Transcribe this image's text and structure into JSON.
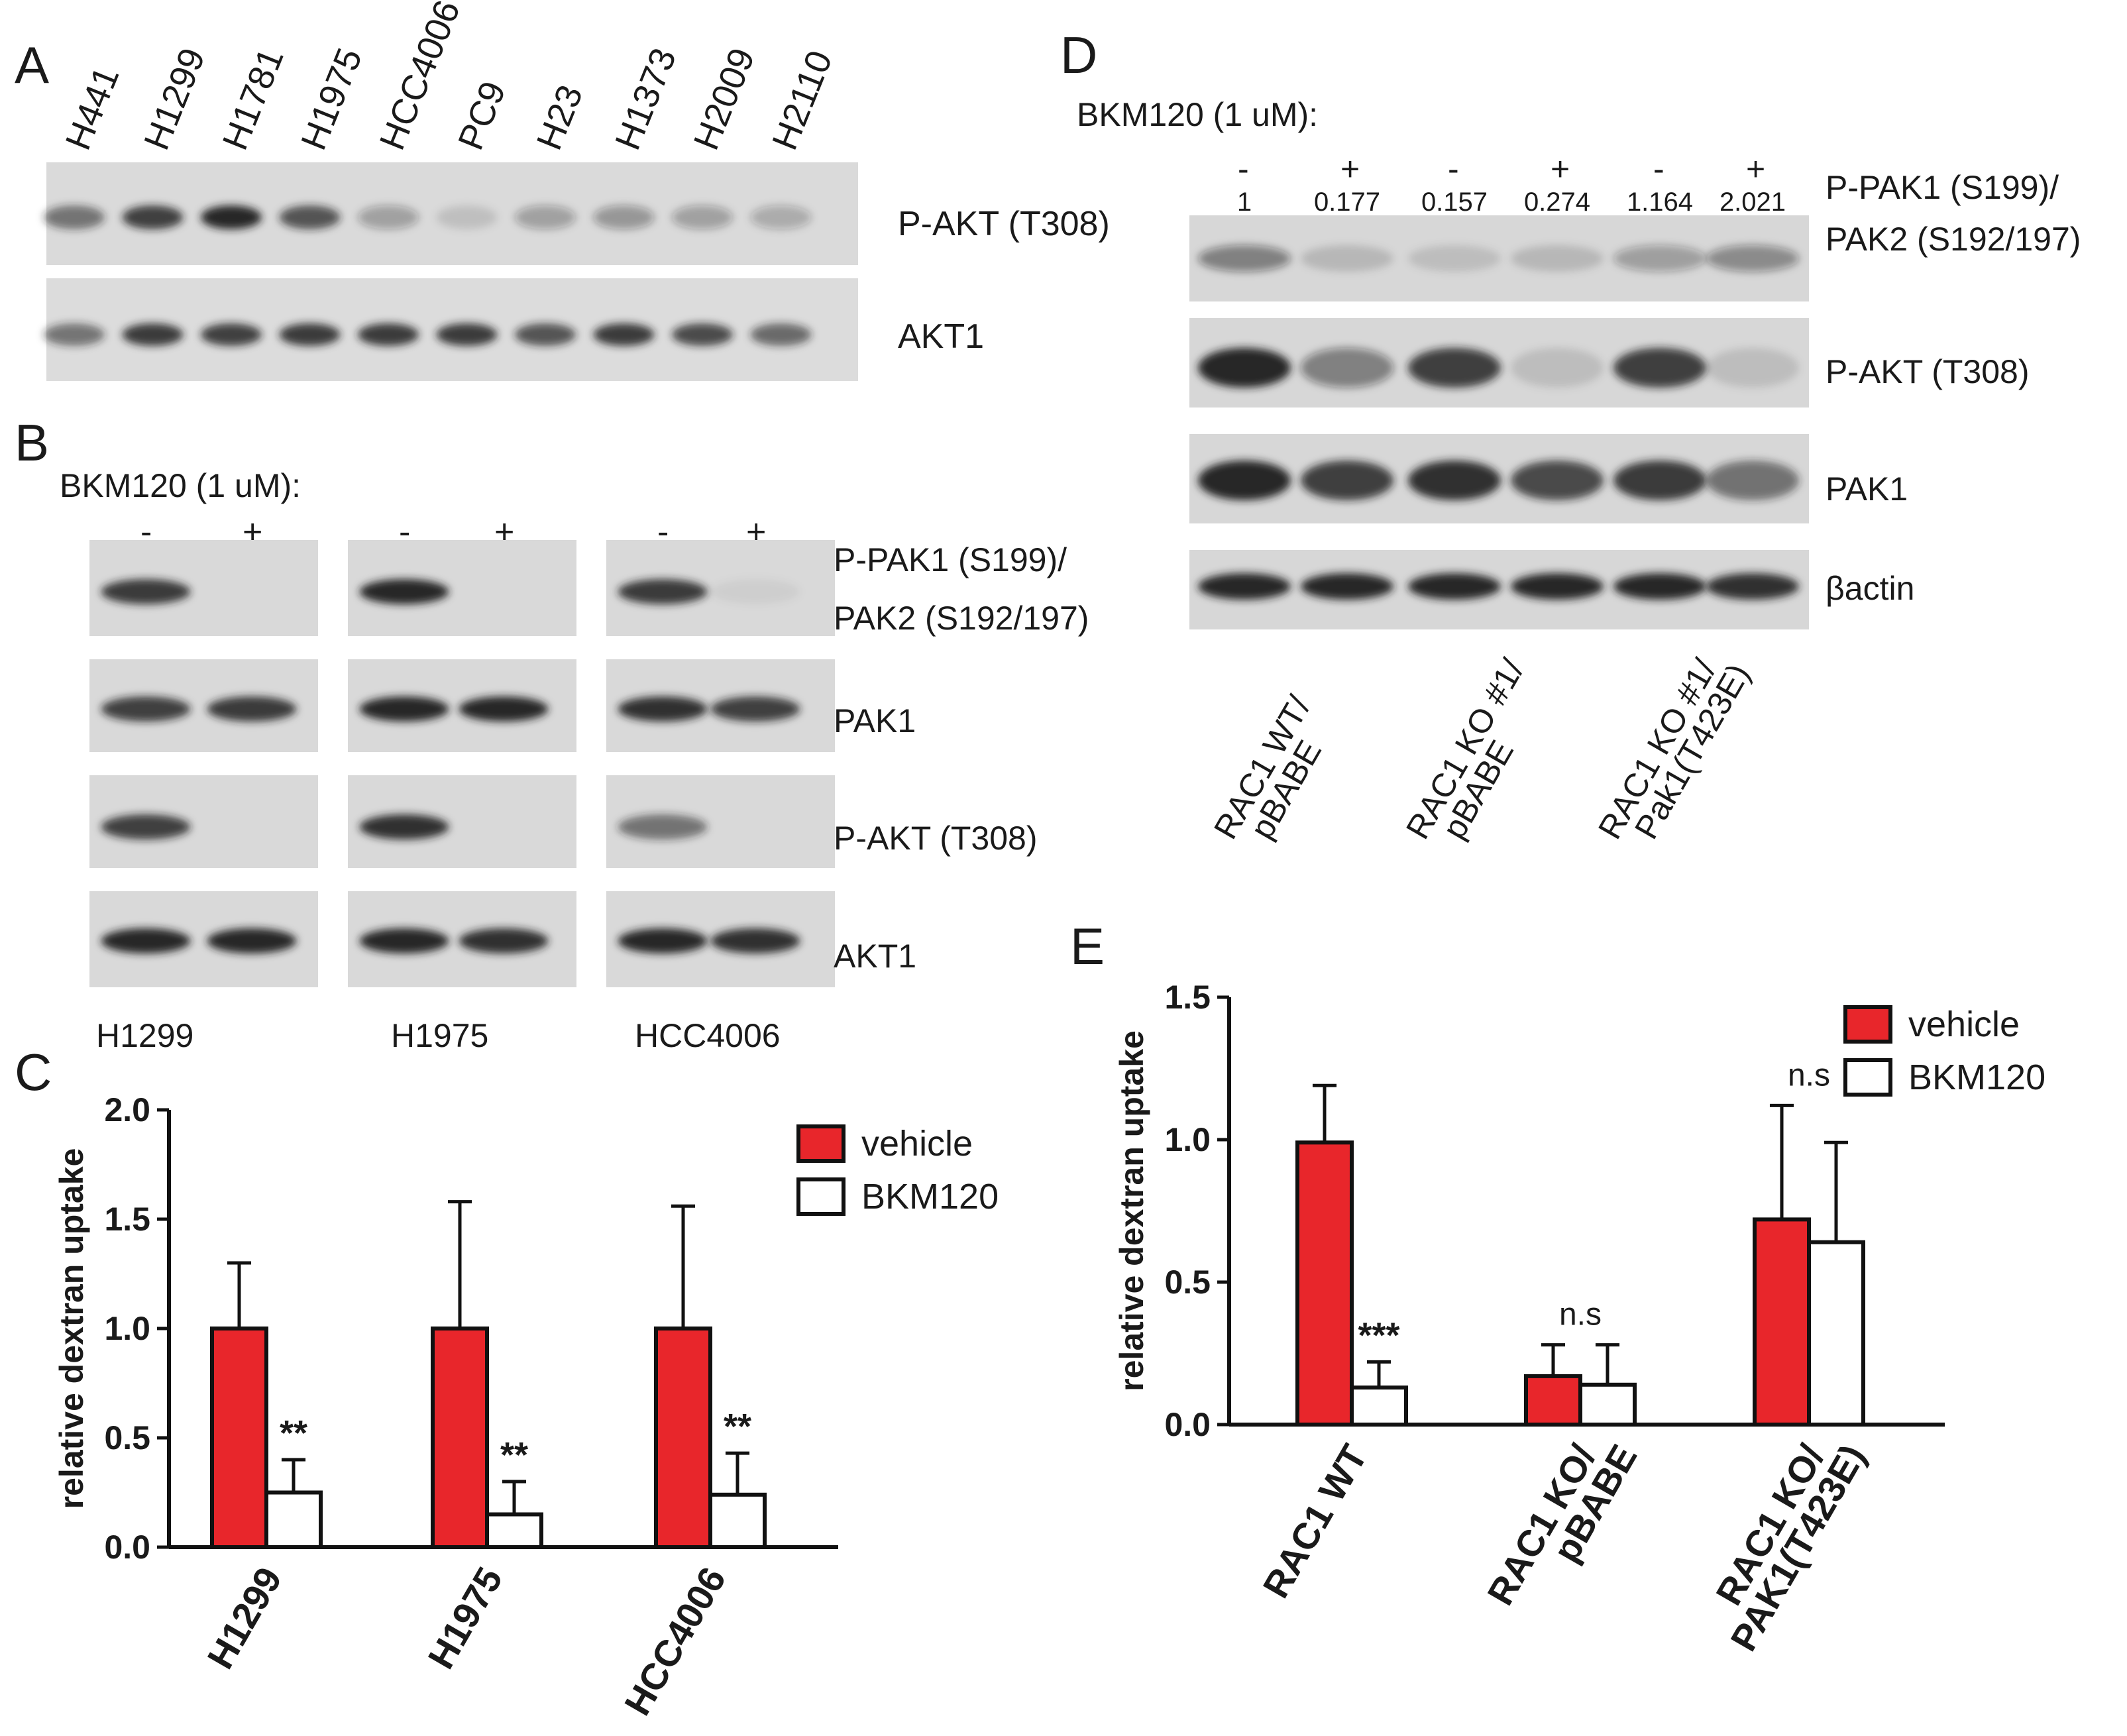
{
  "colors": {
    "red_line": "#e8262b",
    "blue_line": "#2c3a9e",
    "vehicle": "#e8262b",
    "bkm120": "#ffffff",
    "blot_bg": "#d9d9d9",
    "band": "#1c1c1c"
  },
  "panel_a": {
    "letter": "A",
    "lanes": [
      {
        "name": "H441",
        "group": "red",
        "pakt": 0.55,
        "akt1": 0.55
      },
      {
        "name": "H1299",
        "group": "red",
        "pakt": 0.8,
        "akt1": 0.85
      },
      {
        "name": "H1781",
        "group": "red",
        "pakt": 0.95,
        "akt1": 0.8
      },
      {
        "name": "H1975",
        "group": "red",
        "pakt": 0.7,
        "akt1": 0.85
      },
      {
        "name": "HCC4006",
        "group": "red",
        "pakt": 0.3,
        "akt1": 0.85
      },
      {
        "name": "PC9",
        "group": "blue",
        "pakt": 0.12,
        "akt1": 0.85
      },
      {
        "name": "H23",
        "group": "blue",
        "pakt": 0.3,
        "akt1": 0.7
      },
      {
        "name": "H1373",
        "group": "blue",
        "pakt": 0.35,
        "akt1": 0.85
      },
      {
        "name": "H2009",
        "group": "blue",
        "pakt": 0.3,
        "akt1": 0.75
      },
      {
        "name": "H2110",
        "group": "blue",
        "pakt": 0.25,
        "akt1": 0.6
      }
    ],
    "blot_labels": [
      "P-AKT (T308)",
      "AKT1"
    ]
  },
  "panel_b": {
    "letter": "B",
    "treatment": "BKM120 (1 uM):",
    "minus": "-",
    "plus": "+",
    "cell_lines": [
      "H1299",
      "H1975",
      "HCC4006"
    ],
    "blot_labels": [
      "P-PAK1 (S199)/",
      "PAK2 (S192/197)",
      "PAK1",
      "P-AKT (T308)",
      "AKT1"
    ]
  },
  "panel_c": {
    "letter": "C"
  },
  "panel_d": {
    "letter": "D",
    "treatment": "BKM120 (1 uM):",
    "signs": [
      "-",
      "+",
      "-",
      "+",
      "-",
      "+"
    ],
    "quant": [
      "1",
      "0.177",
      "0.157",
      "0.274",
      "1.164",
      "2.021"
    ],
    "blot_labels": [
      "P-PAK1 (S199)/",
      "PAK2 (S192/197)",
      "P-AKT (T308)",
      "PAK1",
      "βactin"
    ],
    "sample_labels": [
      [
        "RAC1 WT/",
        "pBABE"
      ],
      [
        "RAC1 KO #1/",
        "pBABE"
      ],
      [
        "RAC1 KO #1/",
        "Pak1(T423E)"
      ]
    ]
  },
  "panel_e": {
    "letter": "E"
  },
  "chart_data": [
    {
      "type": "bar",
      "panel": "C",
      "categories": [
        "H1299",
        "H1975",
        "HCC4006"
      ],
      "series": [
        {
          "name": "vehicle",
          "values": [
            1.0,
            1.0,
            1.0
          ],
          "errors": [
            0.3,
            0.58,
            0.56
          ]
        },
        {
          "name": "BKM120",
          "values": [
            0.25,
            0.15,
            0.24
          ],
          "errors": [
            0.15,
            0.15,
            0.19
          ]
        }
      ],
      "annotations": [
        "**",
        "**",
        "**"
      ],
      "ylabel": "relative dextran uptake",
      "ylim": [
        0,
        2.0
      ],
      "yticks": [
        "0.0",
        "0.5",
        "1.0",
        "1.5",
        "2.0"
      ],
      "legend": "top-right",
      "grid": false
    },
    {
      "type": "bar",
      "panel": "E",
      "categories": [
        "RAC1 WT",
        "RAC1 KO/ pBABE",
        "RAC1 KO/ PAK1(T423E)"
      ],
      "category_lines": [
        [
          "RAC1 WT"
        ],
        [
          "RAC1 KO/",
          "pBABE"
        ],
        [
          "RAC1 KO/",
          "PAK1(T423E)"
        ]
      ],
      "series": [
        {
          "name": "vehicle",
          "values": [
            0.99,
            0.17,
            0.72
          ],
          "errors": [
            0.2,
            0.11,
            0.4
          ]
        },
        {
          "name": "BKM120",
          "values": [
            0.13,
            0.14,
            0.64
          ],
          "errors": [
            0.09,
            0.14,
            0.35
          ]
        }
      ],
      "annotations": [
        "***",
        "n.s",
        "n.s"
      ],
      "ylabel": "relative dextran uptake",
      "ylim": [
        0,
        1.5
      ],
      "yticks": [
        "0.0",
        "0.5",
        "1.0",
        "1.5"
      ],
      "legend": "top-right",
      "grid": false
    }
  ]
}
